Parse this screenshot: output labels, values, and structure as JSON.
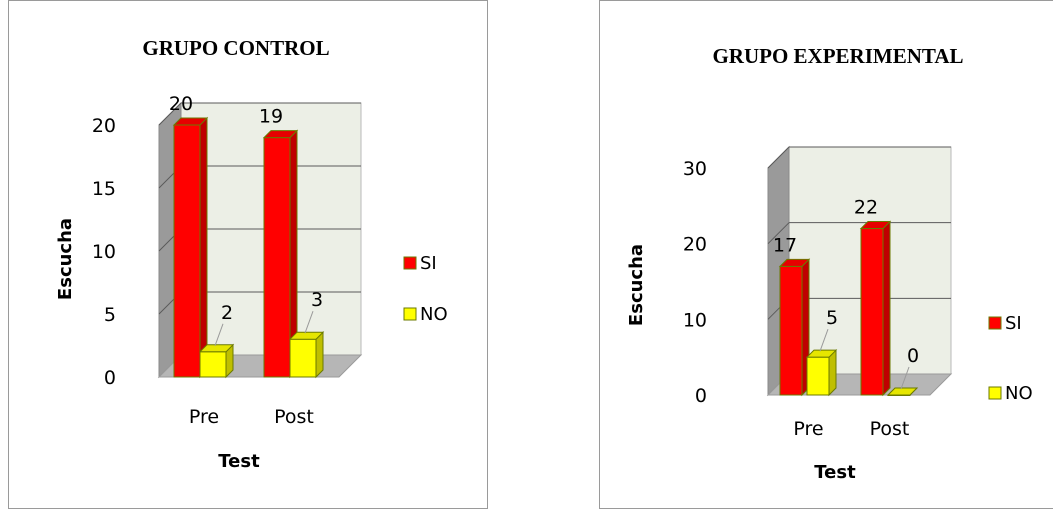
{
  "chart_data": [
    {
      "type": "bar",
      "title": "GRUPO CONTROL",
      "xlabel": "Test",
      "ylabel": "Escucha",
      "categories": [
        "Pre",
        "Post"
      ],
      "series": [
        {
          "name": "SI",
          "values": [
            20,
            19
          ],
          "color": "#ff0000"
        },
        {
          "name": "NO",
          "values": [
            2,
            3
          ],
          "color": "#ffff00"
        }
      ],
      "ylim": [
        0,
        20
      ],
      "yticks": [
        "0",
        "5",
        "10",
        "15",
        "20"
      ],
      "grid": true,
      "legend": "right",
      "style": "3d-column"
    },
    {
      "type": "bar",
      "title": "GRUPO EXPERIMENTAL",
      "xlabel": "Test",
      "ylabel": "Escucha",
      "categories": [
        "Pre",
        "Post"
      ],
      "series": [
        {
          "name": "SI",
          "values": [
            17,
            22
          ],
          "color": "#ff0000"
        },
        {
          "name": "NO",
          "values": [
            5,
            0
          ],
          "color": "#ffff00"
        }
      ],
      "ylim": [
        0,
        30
      ],
      "yticks": [
        "0",
        "10",
        "20",
        "30"
      ],
      "grid": true,
      "legend": "right",
      "style": "3d-column"
    }
  ]
}
